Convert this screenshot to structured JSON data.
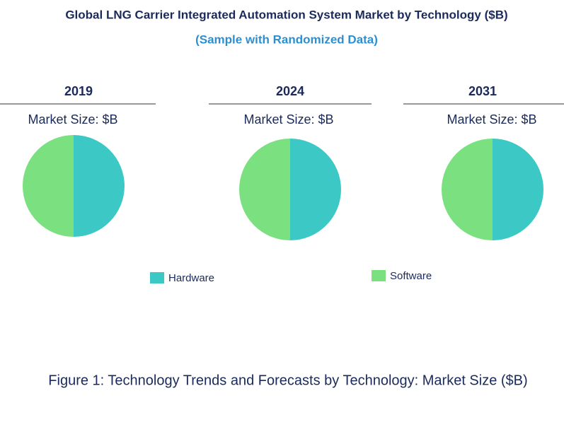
{
  "title": "Global LNG Carrier Integrated Automation System Market by Technology ($B)",
  "subtitle": "(Sample with Randomized Data)",
  "caption": "Figure 1: Technology Trends and Forecasts by Technology: Market Size ($B)",
  "chart_data": [
    {
      "type": "pie",
      "title": "2019",
      "subtitle": "Market Size: $B",
      "categories": [
        "Hardware",
        "Software"
      ],
      "values": [
        50,
        50
      ],
      "colors": [
        "#3cc8c4",
        "#7be07f"
      ]
    },
    {
      "type": "pie",
      "title": "2024",
      "subtitle": "Market Size: $B",
      "categories": [
        "Hardware",
        "Software"
      ],
      "values": [
        50,
        50
      ],
      "colors": [
        "#3cc8c4",
        "#7be07f"
      ]
    },
    {
      "type": "pie",
      "title": "2031",
      "subtitle": "Market Size: $B",
      "categories": [
        "Hardware",
        "Software"
      ],
      "values": [
        50,
        50
      ],
      "colors": [
        "#3cc8c4",
        "#7be07f"
      ]
    }
  ]
}
